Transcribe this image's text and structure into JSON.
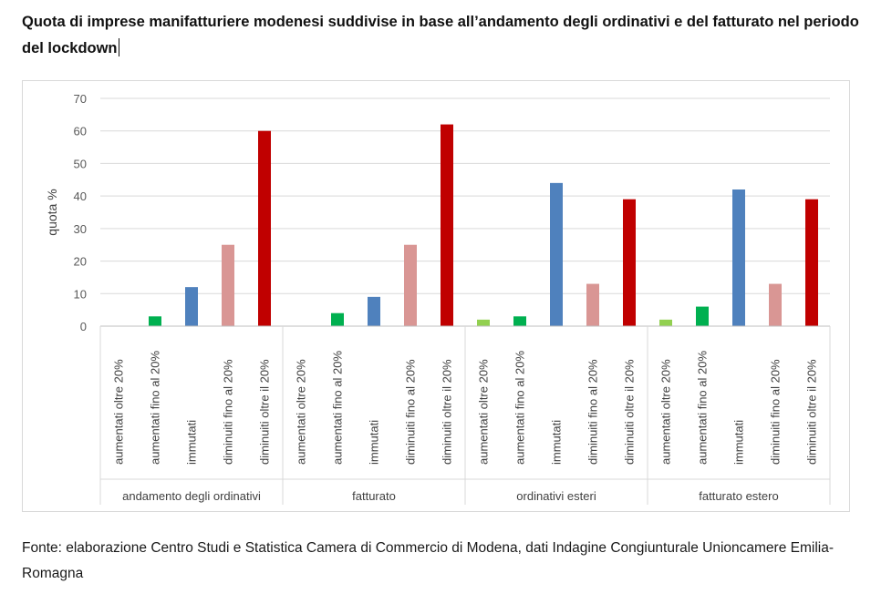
{
  "header": {
    "title": "Quota di imprese manifatturiere modenesi suddivise in base all’andamento degli ordinativi e del fatturato nel periodo del lockdown"
  },
  "footer": {
    "source": "Fonte: elaborazione Centro Studi e Statistica Camera di Commercio di Modena, dati Indagine Congiunturale Unioncamere Emilia-Romagna"
  },
  "chart_data": {
    "type": "bar",
    "title": "",
    "ylabel": "quota %",
    "xlabel": "",
    "ylim": [
      0,
      70
    ],
    "yticks": [
      0,
      10,
      20,
      30,
      40,
      50,
      60,
      70
    ],
    "grid": true,
    "legend": "none",
    "categories": [
      "aumentati oltre 20%",
      "aumentati fino al 20%",
      "immutati",
      "diminuiti fino al 20%",
      "diminuiti oltre il 20%"
    ],
    "category_colors": [
      "#92d050",
      "#00b050",
      "#4f81bd",
      "#d99694",
      "#c00000"
    ],
    "groups": [
      {
        "name": "andamento degli ordinativi",
        "values": [
          0,
          3,
          12,
          25,
          60
        ]
      },
      {
        "name": "fatturato",
        "values": [
          0,
          4,
          9,
          25,
          62
        ]
      },
      {
        "name": "ordinativi esteri",
        "values": [
          2,
          3,
          44,
          13,
          39
        ]
      },
      {
        "name": "fatturato estero",
        "values": [
          2,
          6,
          42,
          13,
          39
        ]
      }
    ]
  }
}
